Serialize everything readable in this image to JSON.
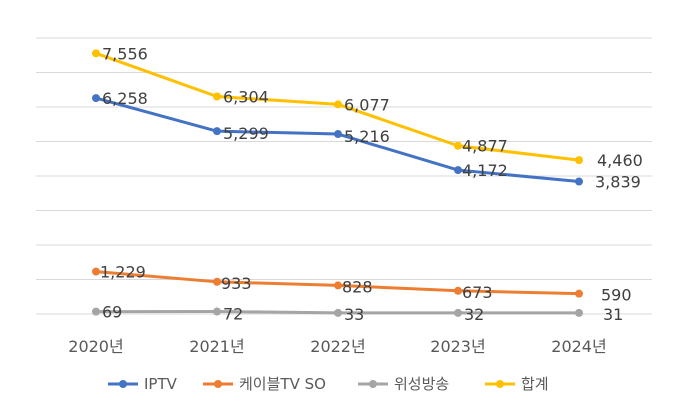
{
  "chart_data": {
    "type": "line",
    "categories": [
      "2020년",
      "2021년",
      "2022년",
      "2023년",
      "2024년"
    ],
    "ylim": [
      0,
      8000
    ],
    "grid": true,
    "legend_position": "bottom",
    "series": [
      {
        "name": "IPTV",
        "color": "#4472C4",
        "values": [
          6258,
          5299,
          5216,
          4172,
          3839
        ],
        "labels": [
          "6,258",
          "5,299",
          "5,216",
          "4,172",
          "3,839"
        ]
      },
      {
        "name": "케이블TV SO",
        "color": "#ED7D31",
        "values": [
          1229,
          933,
          828,
          673,
          590
        ],
        "labels": [
          "1,229",
          "933",
          "828",
          "673",
          "590"
        ]
      },
      {
        "name": "위성방송",
        "color": "#A5A5A5",
        "values": [
          69,
          72,
          33,
          32,
          31
        ],
        "labels": [
          "69",
          "72",
          "33",
          "32",
          "31"
        ]
      },
      {
        "name": "합계",
        "color": "#FFC000",
        "values": [
          7556,
          6304,
          6077,
          4877,
          4460
        ],
        "labels": [
          "7,556",
          "6,304",
          "6,077",
          "4,877",
          "4,460"
        ]
      }
    ]
  }
}
